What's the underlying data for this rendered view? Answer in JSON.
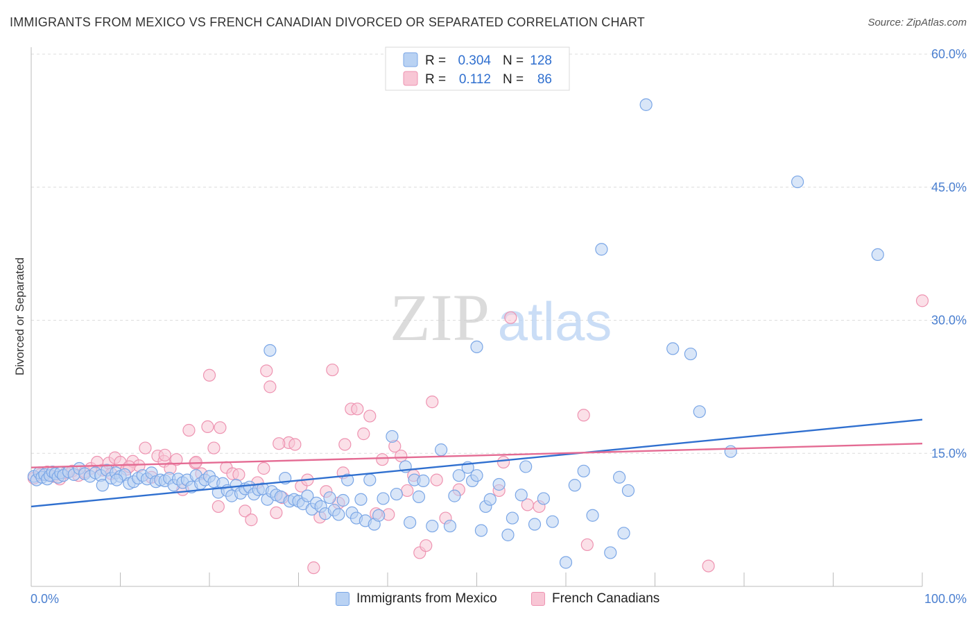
{
  "title": "IMMIGRANTS FROM MEXICO VS FRENCH CANADIAN DIVORCED OR SEPARATED CORRELATION CHART",
  "source": "Source: ZipAtlas.com",
  "watermark": {
    "zip": "ZIP",
    "atlas": "atlas"
  },
  "colors": {
    "blue_fill": "#b9d2f3",
    "blue_stroke": "#7aa6e6",
    "blue_line": "#2f6fcf",
    "pink_fill": "#f8c6d5",
    "pink_stroke": "#ee93b1",
    "pink_line": "#e46b93",
    "grid": "#dcdcdc",
    "axis_label": "#4a7fd0"
  },
  "legend": {
    "rows": [
      {
        "r_label": "R =",
        "r_value": "0.304",
        "n_label": "N =",
        "n_value": "128"
      },
      {
        "r_label": "R =",
        "r_value": "0.112",
        "n_label": "N =",
        "n_value": "86"
      }
    ]
  },
  "bottom_legend": {
    "blue": "Immigrants from Mexico",
    "pink": "French Canadians"
  },
  "chart_data": {
    "type": "scatter",
    "title": "IMMIGRANTS FROM MEXICO VS FRENCH CANADIAN DIVORCED OR SEPARATED CORRELATION CHART",
    "xlabel": "",
    "ylabel": "Divorced or Separated",
    "xlim": [
      0,
      100
    ],
    "ylim": [
      0,
      60
    ],
    "x_tick_labels": [
      "0.0%",
      "100.0%"
    ],
    "y_tick_labels": [
      "15.0%",
      "30.0%",
      "45.0%",
      "60.0%"
    ],
    "y_ticks": [
      15,
      30,
      45,
      60
    ],
    "grid": true,
    "series": [
      {
        "name": "Immigrants from Mexico",
        "color": "blue",
        "R": 0.304,
        "N": 128,
        "trend": [
          [
            0,
            9.0
          ],
          [
            100,
            18.8
          ]
        ],
        "points": [
          [
            0.3,
            12.4
          ],
          [
            0.6,
            12.0
          ],
          [
            0.9,
            12.8
          ],
          [
            1.2,
            12.3
          ],
          [
            1.5,
            12.6
          ],
          [
            1.8,
            12.1
          ],
          [
            2.1,
            12.5
          ],
          [
            2.4,
            12.9
          ],
          [
            2.7,
            12.7
          ],
          [
            3.0,
            12.3
          ],
          [
            3.3,
            12.8
          ],
          [
            3.6,
            12.5
          ],
          [
            4.2,
            12.9
          ],
          [
            4.8,
            12.6
          ],
          [
            5.4,
            13.3
          ],
          [
            6.0,
            12.7
          ],
          [
            6.6,
            12.4
          ],
          [
            7.2,
            12.8
          ],
          [
            7.8,
            12.5
          ],
          [
            8.0,
            11.4
          ],
          [
            8.5,
            13.1
          ],
          [
            9.0,
            12.2
          ],
          [
            9.5,
            12.8
          ],
          [
            10.0,
            12.4
          ],
          [
            10.5,
            12.6
          ],
          [
            11.0,
            11.6
          ],
          [
            11.5,
            11.8
          ],
          [
            12.0,
            12.2
          ],
          [
            12.5,
            12.5
          ],
          [
            13.0,
            12.1
          ],
          [
            13.5,
            12.8
          ],
          [
            14.0,
            11.8
          ],
          [
            14.5,
            12.0
          ],
          [
            15.0,
            11.9
          ],
          [
            15.5,
            12.2
          ],
          [
            16.0,
            11.4
          ],
          [
            16.5,
            12.1
          ],
          [
            17.0,
            11.7
          ],
          [
            17.5,
            12.0
          ],
          [
            18.0,
            11.2
          ],
          [
            18.5,
            12.5
          ],
          [
            19.0,
            11.6
          ],
          [
            19.5,
            12.0
          ],
          [
            20.0,
            12.4
          ],
          [
            20.5,
            11.8
          ],
          [
            21.0,
            10.6
          ],
          [
            21.5,
            11.6
          ],
          [
            22.0,
            10.8
          ],
          [
            22.5,
            10.2
          ],
          [
            23.0,
            11.4
          ],
          [
            23.5,
            10.5
          ],
          [
            24.0,
            11.0
          ],
          [
            24.5,
            11.2
          ],
          [
            25.0,
            10.4
          ],
          [
            25.5,
            10.9
          ],
          [
            26.0,
            11.0
          ],
          [
            26.5,
            9.8
          ],
          [
            27.0,
            10.7
          ],
          [
            27.5,
            10.3
          ],
          [
            28.0,
            10.1
          ],
          [
            28.5,
            12.2
          ],
          [
            29.0,
            9.6
          ],
          [
            29.5,
            9.8
          ],
          [
            30.0,
            9.6
          ],
          [
            30.5,
            9.3
          ],
          [
            31.0,
            10.2
          ],
          [
            31.5,
            8.7
          ],
          [
            32.0,
            9.4
          ],
          [
            32.5,
            9.0
          ],
          [
            33.0,
            8.2
          ],
          [
            33.5,
            10.0
          ],
          [
            34.0,
            8.6
          ],
          [
            34.5,
            8.1
          ],
          [
            35.0,
            9.7
          ],
          [
            35.5,
            12.0
          ],
          [
            36.0,
            8.3
          ],
          [
            36.5,
            7.7
          ],
          [
            37.0,
            9.8
          ],
          [
            37.5,
            7.4
          ],
          [
            38.0,
            12.0
          ],
          [
            38.5,
            7.0
          ],
          [
            39.0,
            8.0
          ],
          [
            39.5,
            9.9
          ],
          [
            40.5,
            16.9
          ],
          [
            41.0,
            10.4
          ],
          [
            42.0,
            13.5
          ],
          [
            42.5,
            7.2
          ],
          [
            43.0,
            12.0
          ],
          [
            43.5,
            10.1
          ],
          [
            44.0,
            11.9
          ],
          [
            45.0,
            6.8
          ],
          [
            46.0,
            15.4
          ],
          [
            47.0,
            6.8
          ],
          [
            47.5,
            10.2
          ],
          [
            48.0,
            12.5
          ],
          [
            49.0,
            13.4
          ],
          [
            49.5,
            11.9
          ],
          [
            50.0,
            12.5
          ],
          [
            50.5,
            6.3
          ],
          [
            51.0,
            9.0
          ],
          [
            51.5,
            9.8
          ],
          [
            52.5,
            11.5
          ],
          [
            53.5,
            5.8
          ],
          [
            54.0,
            7.7
          ],
          [
            55.0,
            10.3
          ],
          [
            55.5,
            13.5
          ],
          [
            56.5,
            7.0
          ],
          [
            57.5,
            9.9
          ],
          [
            58.5,
            7.3
          ],
          [
            60.0,
            2.7
          ],
          [
            61.0,
            11.4
          ],
          [
            62.0,
            13.0
          ],
          [
            63.0,
            8.0
          ],
          [
            64.0,
            38.0
          ],
          [
            65.0,
            3.8
          ],
          [
            66.0,
            12.3
          ],
          [
            67.0,
            10.8
          ],
          [
            66.5,
            6.0
          ],
          [
            26.8,
            26.6
          ],
          [
            50.0,
            27.0
          ],
          [
            69.0,
            54.3
          ],
          [
            72.0,
            26.8
          ],
          [
            74.0,
            26.2
          ],
          [
            75.0,
            19.7
          ],
          [
            78.5,
            15.2
          ],
          [
            86.0,
            45.6
          ],
          [
            95.0,
            37.4
          ],
          [
            9.6,
            12.0
          ]
        ]
      },
      {
        "name": "French Canadians",
        "color": "pink",
        "R": 0.112,
        "N": 86,
        "trend": [
          [
            0,
            13.4
          ],
          [
            100,
            16.1
          ]
        ],
        "points": [
          [
            0.3,
            12.2
          ],
          [
            1.0,
            12.6
          ],
          [
            1.8,
            12.9
          ],
          [
            2.5,
            12.4
          ],
          [
            3.2,
            12.1
          ],
          [
            3.9,
            12.8
          ],
          [
            4.6,
            13.0
          ],
          [
            5.3,
            12.5
          ],
          [
            6.0,
            12.9
          ],
          [
            6.7,
            13.3
          ],
          [
            7.4,
            14.0
          ],
          [
            8.0,
            13.1
          ],
          [
            8.7,
            13.9
          ],
          [
            9.4,
            14.5
          ],
          [
            10.0,
            14.0
          ],
          [
            10.7,
            13.2
          ],
          [
            11.4,
            14.1
          ],
          [
            12.1,
            13.6
          ],
          [
            12.8,
            15.6
          ],
          [
            13.5,
            12.3
          ],
          [
            14.2,
            14.7
          ],
          [
            14.9,
            14.1
          ],
          [
            15.6,
            13.3
          ],
          [
            16.3,
            14.3
          ],
          [
            17.0,
            10.9
          ],
          [
            17.7,
            17.6
          ],
          [
            18.4,
            13.9
          ],
          [
            19.1,
            12.7
          ],
          [
            19.8,
            18.0
          ],
          [
            20.5,
            15.6
          ],
          [
            21.2,
            17.9
          ],
          [
            21.9,
            13.4
          ],
          [
            22.6,
            12.7
          ],
          [
            23.3,
            12.6
          ],
          [
            24.0,
            8.5
          ],
          [
            24.7,
            7.5
          ],
          [
            25.4,
            11.7
          ],
          [
            26.1,
            13.3
          ],
          [
            26.8,
            22.5
          ],
          [
            27.5,
            8.3
          ],
          [
            28.2,
            10.0
          ],
          [
            28.9,
            16.2
          ],
          [
            29.6,
            16.0
          ],
          [
            30.3,
            11.3
          ],
          [
            31.0,
            12.0
          ],
          [
            31.7,
            2.1
          ],
          [
            32.4,
            7.8
          ],
          [
            33.1,
            10.7
          ],
          [
            33.8,
            24.4
          ],
          [
            34.5,
            9.4
          ],
          [
            35.2,
            16.0
          ],
          [
            35.9,
            20.0
          ],
          [
            36.6,
            20.0
          ],
          [
            37.3,
            17.2
          ],
          [
            38.0,
            19.2
          ],
          [
            38.7,
            8.2
          ],
          [
            39.4,
            14.3
          ],
          [
            40.1,
            8.1
          ],
          [
            40.8,
            15.8
          ],
          [
            41.5,
            14.7
          ],
          [
            42.2,
            10.8
          ],
          [
            42.9,
            12.5
          ],
          [
            43.6,
            3.8
          ],
          [
            44.3,
            4.6
          ],
          [
            45.0,
            20.8
          ],
          [
            45.5,
            12.0
          ],
          [
            46.5,
            7.7
          ],
          [
            48.0,
            10.9
          ],
          [
            52.5,
            10.8
          ],
          [
            53.0,
            14.0
          ],
          [
            53.8,
            30.3
          ],
          [
            55.7,
            9.2
          ],
          [
            57.0,
            9.0
          ],
          [
            62.0,
            19.3
          ],
          [
            62.4,
            4.7
          ],
          [
            76.0,
            2.3
          ],
          [
            100.0,
            32.2
          ],
          [
            26.4,
            24.3
          ],
          [
            18.5,
            14.0
          ],
          [
            21.0,
            9.0
          ],
          [
            27.8,
            16.1
          ],
          [
            11.0,
            13.5
          ],
          [
            15.0,
            14.8
          ],
          [
            20.0,
            23.8
          ],
          [
            9.0,
            12.7
          ],
          [
            35.0,
            12.8
          ]
        ]
      }
    ]
  }
}
